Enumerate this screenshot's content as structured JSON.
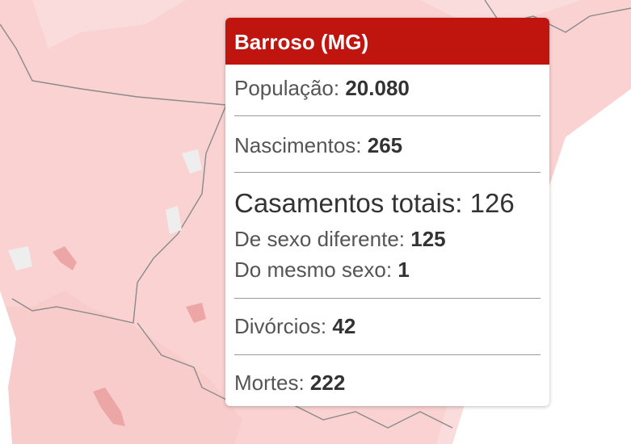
{
  "tooltip": {
    "title": "Barroso (MG)",
    "rows": [
      {
        "label": "População:",
        "value": "20.080"
      },
      {
        "label": "Nascimentos:",
        "value": "265"
      },
      {
        "label": "Casamentos totais:",
        "value": "126"
      },
      {
        "label": "De sexo diferente:",
        "value": "125"
      },
      {
        "label": "Do mesmo sexo:",
        "value": "1"
      },
      {
        "label": "Divórcios:",
        "value": "42"
      },
      {
        "label": "Mortes:",
        "value": "222"
      }
    ]
  }
}
